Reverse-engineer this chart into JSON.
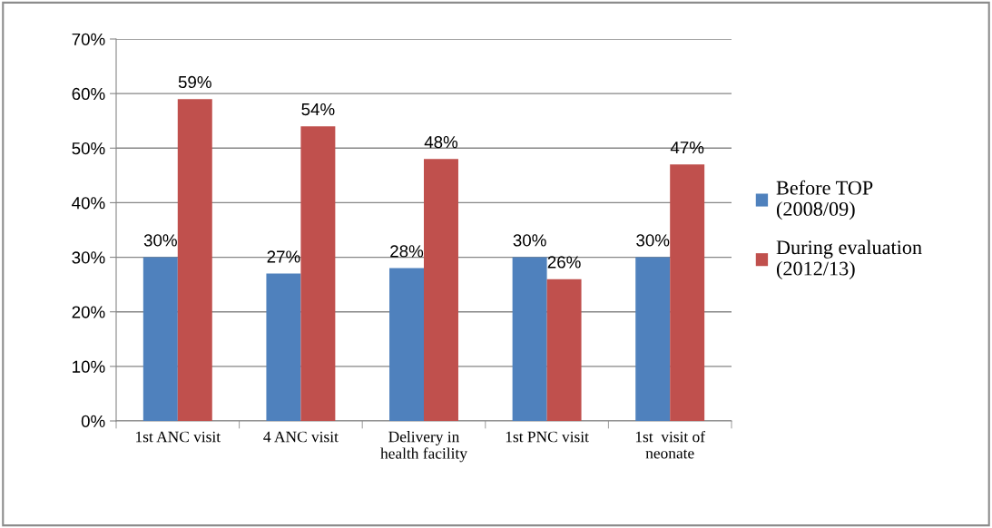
{
  "chart_data": {
    "type": "bar",
    "categories": [
      "1st ANC visit",
      "4 ANC visit",
      "Delivery in\nhealth facility",
      "1st PNC visit",
      "1st  visit of\nneonate"
    ],
    "series": [
      {
        "name": "Before TOP\n(2008/09)",
        "color": "#4f81bd",
        "values": [
          30,
          27,
          28,
          30,
          30
        ],
        "value_labels": [
          "30%",
          "27%",
          "28%",
          "30%",
          "30%"
        ]
      },
      {
        "name": "During evaluation\n(2012/13)",
        "color": "#c0504d",
        "values": [
          59,
          54,
          48,
          26,
          47
        ],
        "value_labels": [
          "59%",
          "54%",
          "48%",
          "26%",
          "47%"
        ]
      }
    ],
    "ylim": [
      0,
      70
    ],
    "yticks": [
      {
        "value": 0,
        "label": "0%"
      },
      {
        "value": 10,
        "label": "10%"
      },
      {
        "value": 20,
        "label": "20%"
      },
      {
        "value": 30,
        "label": "30%"
      },
      {
        "value": 40,
        "label": "40%"
      },
      {
        "value": 50,
        "label": "50%"
      },
      {
        "value": 60,
        "label": "60%"
      },
      {
        "value": 70,
        "label": "70%"
      }
    ],
    "grid": "y",
    "legend": "right"
  }
}
